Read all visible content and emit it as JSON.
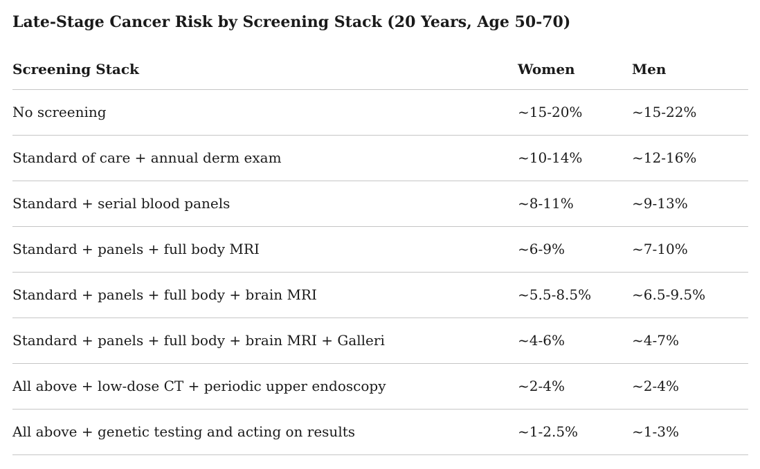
{
  "title": "Late-Stage Cancer Risk by Screening Stack (20 Years, Age 50-70)",
  "table": {
    "headers": [
      "Screening Stack",
      "Women",
      "Men"
    ],
    "rows": [
      {
        "stack": "No screening",
        "women": "~15-20%",
        "men": "~15-22%"
      },
      {
        "stack": "Standard of care + annual derm exam",
        "women": "~10-14%",
        "men": "~12-16%"
      },
      {
        "stack": "Standard + serial blood panels",
        "women": "~8-11%",
        "men": "~9-13%"
      },
      {
        "stack": "Standard + panels + full body MRI",
        "women": "~6-9%",
        "men": "~7-10%"
      },
      {
        "stack": "Standard + panels + full body + brain MRI",
        "women": "~5.5-8.5%",
        "men": "~6.5-9.5%"
      },
      {
        "stack": "Standard + panels + full body + brain MRI + Galleri",
        "women": "~4-6%",
        "men": "~4-7%"
      },
      {
        "stack": "All above + low-dose CT + periodic upper endoscopy",
        "women": "~2-4%",
        "men": "~2-4%"
      },
      {
        "stack": "All above + genetic testing and acting on results",
        "women": "~1-2.5%",
        "men": "~1-3%"
      }
    ]
  },
  "colors": {
    "text": "#1a1a1a",
    "border": "#c5c5c5",
    "background": "#ffffff"
  }
}
